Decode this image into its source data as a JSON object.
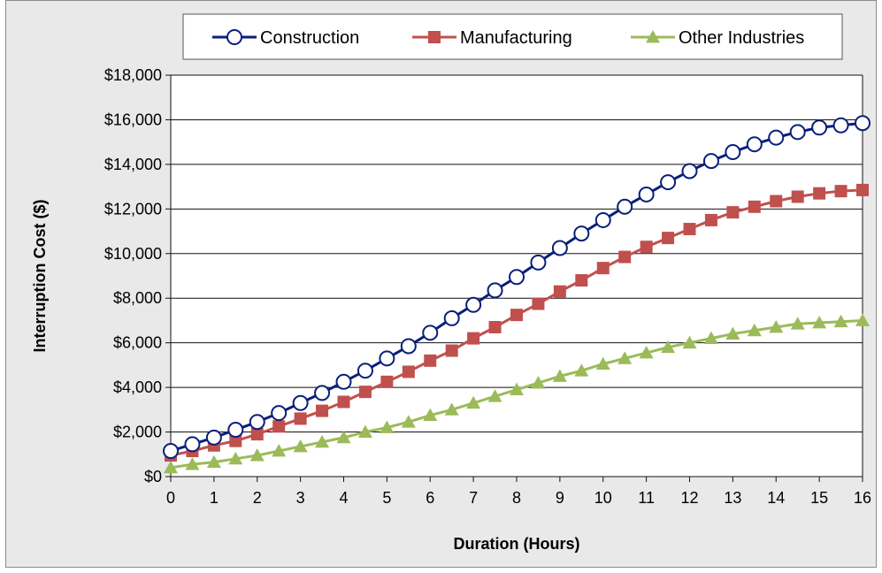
{
  "chart_data": {
    "type": "line",
    "xlabel": "Duration (Hours)",
    "ylabel": "Interruption Cost ($)",
    "xlim": [
      0,
      16
    ],
    "ylim": [
      0,
      18000
    ],
    "x_ticks": [
      "0",
      "1",
      "2",
      "3",
      "4",
      "5",
      "6",
      "7",
      "8",
      "9",
      "10",
      "11",
      "12",
      "13",
      "14",
      "15",
      "16"
    ],
    "y_ticks": [
      "$0",
      "$2,000",
      "$4,000",
      "$6,000",
      "$8,000",
      "$10,000",
      "$12,000",
      "$14,000",
      "$16,000",
      "$18,000"
    ],
    "grid": "horizontal",
    "legend_position": "top",
    "x": [
      0,
      0.5,
      1,
      1.5,
      2,
      2.5,
      3,
      3.5,
      4,
      4.5,
      5,
      5.5,
      6,
      6.5,
      7,
      7.5,
      8,
      8.5,
      9,
      9.5,
      10,
      10.5,
      11,
      11.5,
      12,
      12.5,
      13,
      13.5,
      14,
      14.5,
      15,
      15.5,
      16
    ],
    "series": [
      {
        "name": "Construction",
        "color": "#0a1f7a",
        "marker": "circle-open",
        "values": [
          1150,
          1450,
          1750,
          2100,
          2450,
          2850,
          3300,
          3750,
          4250,
          4750,
          5300,
          5850,
          6450,
          7100,
          7700,
          8350,
          8950,
          9600,
          10250,
          10900,
          11500,
          12100,
          12650,
          13200,
          13700,
          14150,
          14550,
          14900,
          15200,
          15450,
          15650,
          15750,
          15850
        ]
      },
      {
        "name": "Manufacturing",
        "color": "#c0504d",
        "marker": "square",
        "values": [
          950,
          1150,
          1400,
          1600,
          1900,
          2250,
          2600,
          2950,
          3350,
          3800,
          4250,
          4700,
          5200,
          5650,
          6200,
          6700,
          7250,
          7750,
          8300,
          8800,
          9350,
          9850,
          10300,
          10700,
          11100,
          11500,
          11850,
          12100,
          12350,
          12550,
          12700,
          12800,
          12850
        ]
      },
      {
        "name": "Other Industries",
        "color": "#9bbb59",
        "marker": "triangle",
        "values": [
          400,
          550,
          650,
          800,
          950,
          1150,
          1350,
          1550,
          1750,
          2000,
          2200,
          2450,
          2750,
          3000,
          3300,
          3600,
          3900,
          4200,
          4500,
          4750,
          5050,
          5300,
          5550,
          5800,
          6000,
          6200,
          6400,
          6550,
          6700,
          6850,
          6900,
          6950,
          7000
        ]
      }
    ]
  }
}
